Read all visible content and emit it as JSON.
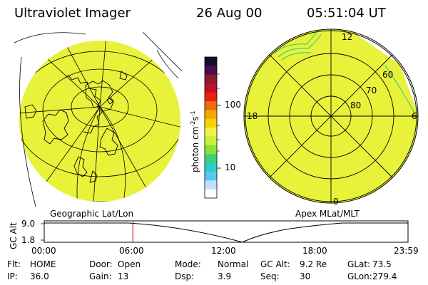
{
  "header": {
    "instrument": "Ultraviolet Imager",
    "date": "26 Aug 00",
    "time": "05:51:04 UT"
  },
  "colorbar": {
    "label": "photon cm",
    "label_sup1": "-2",
    "label_mid": "s",
    "label_sup2": "-1",
    "ticks": [
      "100",
      "10"
    ],
    "colors": [
      "#1a0a2e",
      "#4b0f4f",
      "#8a1a2f",
      "#c0102a",
      "#e82010",
      "#f06a10",
      "#f7a400",
      "#f5d200",
      "#eef24a",
      "#c8f23a",
      "#8ae03a",
      "#3fd07a",
      "#2ad0c8",
      "#58c8f0",
      "#c0e0ff",
      "#ffffff"
    ]
  },
  "geo_map": {
    "label": "Geographic Lat/Lon",
    "fill_color": "#e8f23a"
  },
  "polar_map": {
    "label": "Apex MLat/MLT",
    "mlt_labels": [
      "12",
      "18",
      "6",
      "0"
    ],
    "mlat_labels": [
      "60",
      "70",
      "80"
    ],
    "fill_color": "#e8f23a"
  },
  "timeline": {
    "ylabel": "GC Alt",
    "y_ticks": [
      "9.0",
      "1.8"
    ],
    "x_ticks": [
      "00:00",
      "06:00",
      "12:00",
      "18:00",
      "23:59"
    ],
    "marker_color": "#e02020",
    "current_fraction": 0.2438
  },
  "status": {
    "row1": [
      {
        "key": "Flt:",
        "value": "HOME"
      },
      {
        "key": "Door:",
        "value": "Open"
      },
      {
        "key": "Mode:",
        "value": "Normal"
      },
      {
        "key": "GC Alt:",
        "value": "9.2 Re"
      },
      {
        "key": "GLat:",
        "value": "73.5"
      }
    ],
    "row2": [
      {
        "key": "IP:",
        "value": "36.0"
      },
      {
        "key": "Gain:",
        "value": "13"
      },
      {
        "key": "Dsp:",
        "value": "3.9"
      },
      {
        "key": "Seq:",
        "value": "30"
      },
      {
        "key": "GLon:",
        "value": "279.4"
      }
    ]
  }
}
